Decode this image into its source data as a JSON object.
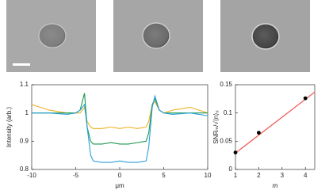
{
  "chart_data": [
    {
      "type": "line",
      "xlabel": "μm",
      "ylabel": "Intensity (arb.)",
      "xlim": [
        -10,
        10
      ],
      "xticks": [
        -10,
        -5,
        0,
        5,
        10
      ],
      "ylim": [
        0.8,
        1.1
      ],
      "yticks": [
        0.8,
        0.9,
        1,
        1.1
      ],
      "x": [
        -10,
        -8,
        -6,
        -5,
        -4.5,
        -4,
        -3.7,
        -3.3,
        -3,
        -2,
        -1,
        0,
        1,
        2,
        3,
        3.3,
        3.7,
        4,
        4.5,
        5,
        6,
        8,
        10
      ],
      "series": [
        {
          "color": "#edb120",
          "values": [
            1.03,
            1.01,
            1.0,
            1.0,
            1.0,
            1.02,
            0.97,
            0.95,
            0.945,
            0.945,
            0.95,
            0.945,
            0.95,
            0.945,
            0.95,
            0.97,
            1.03,
            1.04,
            1.01,
            1.0,
            1.01,
            1.02,
            1.0
          ]
        },
        {
          "color": "#1a9850",
          "values": [
            1.0,
            1.0,
            1.0,
            1.0,
            1.01,
            1.07,
            0.95,
            0.9,
            0.89,
            0.89,
            0.895,
            0.89,
            0.89,
            0.895,
            0.9,
            0.93,
            1.03,
            1.05,
            1.01,
            1.0,
            1.0,
            1.0,
            1.0
          ]
        },
        {
          "color": "#2b9fd8",
          "values": [
            1.0,
            1.0,
            0.995,
            1.0,
            1.01,
            1.03,
            0.95,
            0.85,
            0.83,
            0.825,
            0.825,
            0.83,
            0.825,
            0.825,
            0.83,
            0.88,
            1.02,
            1.06,
            1.01,
            1.0,
            0.995,
            1.0,
            0.99
          ]
        }
      ]
    },
    {
      "type": "scatter",
      "xlabel": "m",
      "ylabel": "SNRₘ/√⟨n⟩₀",
      "xlim": [
        1,
        4.4
      ],
      "xticks": [
        1,
        2,
        3,
        4
      ],
      "ylim": [
        0,
        0.15
      ],
      "yticks": [
        0,
        0.05,
        0.1,
        0.15
      ],
      "x": [
        1,
        2,
        4
      ],
      "values": [
        0.03,
        0.065,
        0.126
      ],
      "color": "#000000",
      "fit": {
        "x": [
          1,
          4.4
        ],
        "values": [
          0.029,
          0.137
        ],
        "color": "#f0605a"
      }
    }
  ]
}
